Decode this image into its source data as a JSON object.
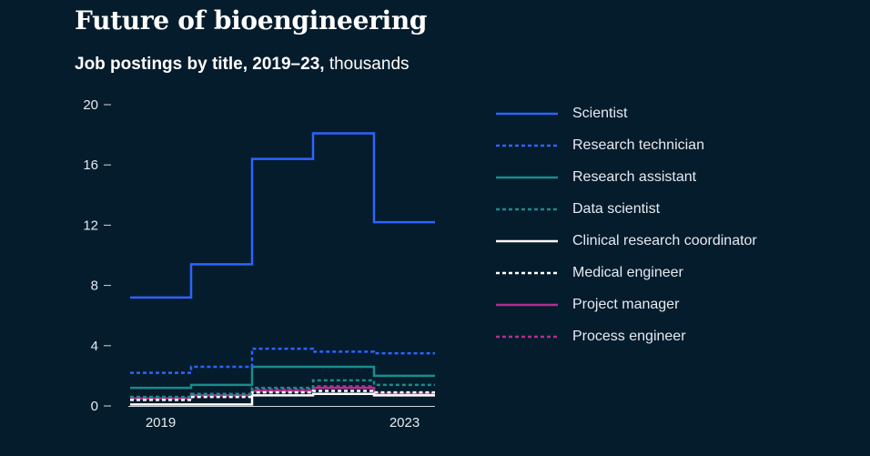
{
  "header": {
    "title": "Future of bioengineering",
    "subtitle_bold": "Job postings by title, 2019–23,",
    "subtitle_unit": "thousands"
  },
  "chart_data": {
    "type": "line",
    "step": true,
    "title": "Future of bioengineering",
    "subtitle": "Job postings by title, 2019–23, thousands",
    "xlabel": "",
    "ylabel": "",
    "x": [
      2019,
      2020,
      2021,
      2022,
      2023
    ],
    "x_tick_labels": [
      {
        "x": 2019,
        "label": "2019"
      },
      {
        "x": 2023,
        "label": "2023"
      }
    ],
    "ylim": [
      0,
      20
    ],
    "y_ticks": [
      0,
      4,
      8,
      12,
      16,
      20
    ],
    "legend_position": "right",
    "series": [
      {
        "name": "Scientist",
        "values": [
          7.2,
          9.4,
          16.4,
          18.1,
          12.2
        ],
        "color": "#2f63ff",
        "dashed": false
      },
      {
        "name": "Research technician",
        "values": [
          2.2,
          2.6,
          3.8,
          3.6,
          3.5
        ],
        "color": "#2f63ff",
        "dashed": true
      },
      {
        "name": "Research assistant",
        "values": [
          1.2,
          1.4,
          2.6,
          2.6,
          2.0
        ],
        "color": "#1a8c8a",
        "dashed": false
      },
      {
        "name": "Data scientist",
        "values": [
          0.6,
          0.8,
          1.2,
          1.7,
          1.4
        ],
        "color": "#1a8c8a",
        "dashed": true
      },
      {
        "name": "Clinical research coordinator",
        "values": [
          0.1,
          0.1,
          0.7,
          0.8,
          0.7
        ],
        "color": "#ffffff",
        "dashed": false
      },
      {
        "name": "Medical engineer",
        "values": [
          0.4,
          0.6,
          0.9,
          1.0,
          0.9
        ],
        "color": "#ffffff",
        "dashed": true
      },
      {
        "name": "Project manager",
        "values": [
          0.5,
          0.7,
          1.0,
          1.2,
          0.8
        ],
        "color": "#b0308f",
        "dashed": false
      },
      {
        "name": "Process engineer",
        "values": [
          0.6,
          0.7,
          1.1,
          1.3,
          0.8
        ],
        "color": "#b0308f",
        "dashed": true
      }
    ]
  }
}
